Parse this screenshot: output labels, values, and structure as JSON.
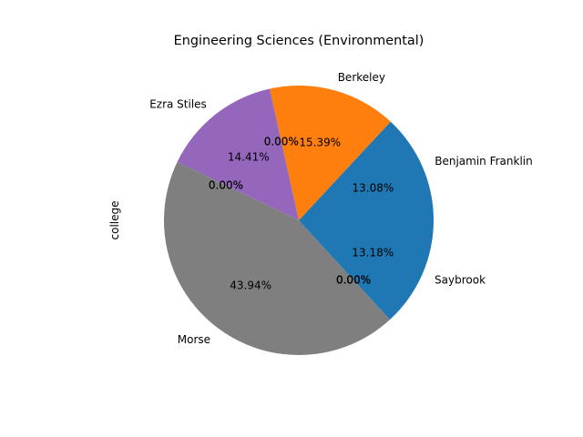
{
  "chart_data": {
    "type": "pie",
    "title": "Engineering Sciences (Environmental)",
    "ylabel": "college",
    "start_angle_deg": 0,
    "direction": "counterclockwise",
    "slices": [
      {
        "label": "Benjamin Franklin",
        "value": 13.08,
        "pct_label": "13.08%",
        "color": "#1f77b4"
      },
      {
        "label": "Berkeley",
        "value": 15.39,
        "pct_label": "15.39%",
        "color": "#ff7f0e"
      },
      {
        "label": "",
        "value": 0,
        "pct_label": "0.00%",
        "color": "#2ca02c"
      },
      {
        "label": "",
        "value": 0,
        "pct_label": "0.00%",
        "color": "#d62728"
      },
      {
        "label": "Ezra Stiles",
        "value": 14.41,
        "pct_label": "14.41%",
        "color": "#9467bd"
      },
      {
        "label": "",
        "value": 0,
        "pct_label": "0.00%",
        "color": "#8c564b"
      },
      {
        "label": "",
        "value": 0,
        "pct_label": "0.00%",
        "color": "#e377c2"
      },
      {
        "label": "Morse",
        "value": 43.94,
        "pct_label": "43.94%",
        "color": "#7f7f7f"
      },
      {
        "label": "",
        "value": 0,
        "pct_label": "0.00%",
        "color": "#bcbd22"
      },
      {
        "label": "",
        "value": 0,
        "pct_label": "0.00%",
        "color": "#17becf"
      },
      {
        "label": "",
        "value": 0,
        "pct_label": "0.00%",
        "color": "#1f77b4"
      },
      {
        "label": "",
        "value": 0,
        "pct_label": "0.00%",
        "color": "#ff7f0e"
      },
      {
        "label": "Saybrook",
        "value": 13.18,
        "pct_label": "13.18%",
        "color": "#1f77b4"
      }
    ]
  }
}
